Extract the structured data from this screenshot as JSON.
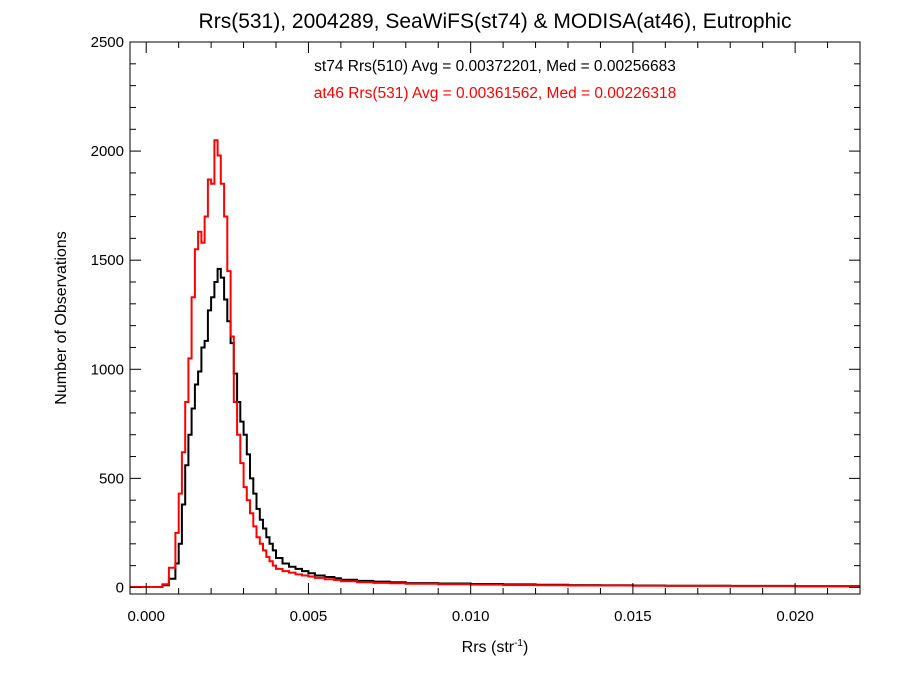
{
  "chart_data": {
    "type": "histogram",
    "title": "Rrs(531), 2004289, SeaWiFS(st74) & MODISA(at46), Eutrophic",
    "xlabel": {
      "base": "Rrs (str",
      "sup": "-1",
      "tail": ")"
    },
    "ylabel": "Number of Observations",
    "xlim": [
      -0.0005,
      0.022
    ],
    "ylim": [
      -30,
      2500
    ],
    "x_ticks": [
      {
        "value": 0.0,
        "label": "0.000"
      },
      {
        "value": 0.005,
        "label": "0.005"
      },
      {
        "value": 0.01,
        "label": "0.010"
      },
      {
        "value": 0.015,
        "label": "0.015"
      },
      {
        "value": 0.02,
        "label": "0.020"
      }
    ],
    "y_ticks": [
      {
        "value": 0,
        "label": "0"
      },
      {
        "value": 500,
        "label": "500"
      },
      {
        "value": 1000,
        "label": "1000"
      },
      {
        "value": 1500,
        "label": "1500"
      },
      {
        "value": 2000,
        "label": "2000"
      },
      {
        "value": 2500,
        "label": "2500"
      }
    ],
    "annotations": [
      {
        "text": "st74 Rrs(510) Avg = 0.00372201, Med = 0.00256683",
        "color": "#000000"
      },
      {
        "text": "at46 Rrs(531) Avg = 0.00361562, Med = 0.00226318",
        "color": "#ff0000"
      }
    ],
    "series": [
      {
        "color": "#000000",
        "x": [
          0.0005,
          0.0007,
          0.0009,
          0.001,
          0.0011,
          0.0012,
          0.0013,
          0.0014,
          0.0015,
          0.0016,
          0.0017,
          0.0018,
          0.0019,
          0.002,
          0.0021,
          0.0022,
          0.0023,
          0.0024,
          0.0025,
          0.0026,
          0.0027,
          0.0028,
          0.0029,
          0.003,
          0.0031,
          0.0032,
          0.0033,
          0.0034,
          0.0035,
          0.0036,
          0.0037,
          0.0038,
          0.0039,
          0.004,
          0.0042,
          0.0044,
          0.0046,
          0.0048,
          0.005,
          0.0052,
          0.0055,
          0.0058,
          0.006,
          0.0065,
          0.007,
          0.0075,
          0.008,
          0.009,
          0.01,
          0.011,
          0.012,
          0.013,
          0.014,
          0.015,
          0.016,
          0.017,
          0.018,
          0.019,
          0.02,
          0.021,
          0.0219
        ],
        "y": [
          2,
          10,
          40,
          110,
          200,
          380,
          560,
          700,
          820,
          930,
          990,
          1100,
          1130,
          1270,
          1330,
          1400,
          1460,
          1420,
          1320,
          1220,
          1120,
          980,
          850,
          760,
          700,
          610,
          500,
          430,
          360,
          310,
          270,
          230,
          200,
          170,
          135,
          110,
          95,
          85,
          75,
          65,
          55,
          48,
          42,
          35,
          30,
          27,
          24,
          20,
          18,
          16,
          14,
          12,
          11,
          10,
          9,
          8,
          8,
          7,
          7,
          6,
          6
        ]
      },
      {
        "color": "#ff0000",
        "x": [
          0.0005,
          0.0007,
          0.0009,
          0.001,
          0.0011,
          0.0012,
          0.0013,
          0.0014,
          0.0015,
          0.0016,
          0.0017,
          0.0018,
          0.0019,
          0.002,
          0.0021,
          0.0022,
          0.0023,
          0.0024,
          0.0025,
          0.0026,
          0.0027,
          0.0028,
          0.0029,
          0.003,
          0.0031,
          0.0032,
          0.0033,
          0.0034,
          0.0035,
          0.0036,
          0.0037,
          0.0038,
          0.0039,
          0.004,
          0.0042,
          0.0044,
          0.0046,
          0.0048,
          0.005,
          0.0052,
          0.0055,
          0.0058,
          0.006,
          0.0065,
          0.007,
          0.0075,
          0.008,
          0.009,
          0.01,
          0.011,
          0.012,
          0.013,
          0.014,
          0.015,
          0.016,
          0.017,
          0.018,
          0.019,
          0.02,
          0.021,
          0.0219
        ],
        "y": [
          2,
          15,
          90,
          250,
          430,
          620,
          850,
          1050,
          1330,
          1550,
          1630,
          1580,
          1700,
          1870,
          1850,
          2050,
          1980,
          1850,
          1700,
          1450,
          1150,
          850,
          700,
          570,
          460,
          400,
          340,
          280,
          230,
          200,
          170,
          140,
          120,
          100,
          85,
          75,
          68,
          60,
          55,
          50,
          44,
          38,
          34,
          28,
          24,
          21,
          19,
          17,
          15,
          13,
          11,
          10,
          9,
          9,
          8,
          7,
          7,
          6,
          6,
          5,
          5
        ]
      }
    ]
  }
}
